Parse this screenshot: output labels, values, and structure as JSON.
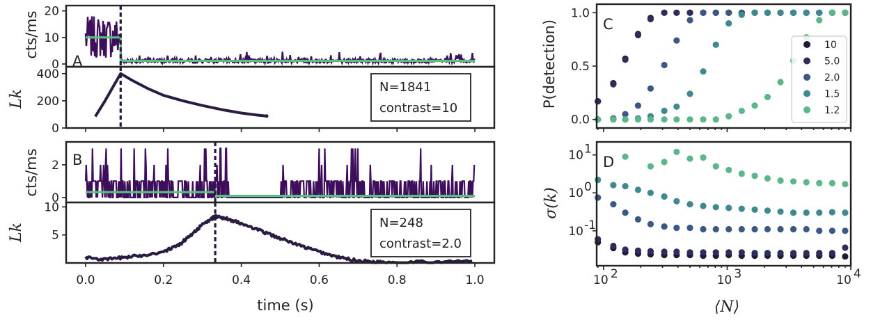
{
  "colors": {
    "trace": "#3e0d5c",
    "fit": "#55c379",
    "likelihood": "#2a1c40",
    "marker": "#241a3d",
    "contrast": {
      "10": "#24183a",
      "5.0": "#2c2d5a",
      "2.0": "#3c5783",
      "1.5": "#3f8891",
      "1.2": "#5cb68b"
    }
  },
  "chart_data": [
    {
      "id": "A-top",
      "type": "line",
      "panel_label": "A",
      "ylabel": "cts/ms",
      "ylim": [
        0,
        22
      ],
      "yticks": [
        0,
        10,
        20
      ],
      "xlim": [
        -0.05,
        1.05
      ],
      "change_point": 0.09,
      "fit_levels": [
        {
          "x0": 0.0,
          "x1": 0.09,
          "y": 10
        },
        {
          "x0": 0.09,
          "x1": 1.0,
          "y": 1.2
        }
      ],
      "trace_description_levels": {
        "before_mean": 10,
        "before_spread": 5,
        "after_mean": 1,
        "after_spikes_max": 4
      }
    },
    {
      "id": "A-bottom",
      "type": "line",
      "ylabel": "L_k",
      "ylim": [
        0,
        450
      ],
      "yticks": [
        0,
        200,
        400
      ],
      "xlim": [
        -0.05,
        1.05
      ],
      "xticks": [
        0.0,
        0.2,
        0.4,
        0.6,
        0.8,
        1.0
      ],
      "change_point": 0.09,
      "series": [
        {
          "x": [
            0.025,
            0.05,
            0.07,
            0.09,
            0.12,
            0.16,
            0.2,
            0.25,
            0.3,
            0.35,
            0.4,
            0.44,
            0.465
          ],
          "values": [
            85,
            200,
            300,
            400,
            350,
            290,
            240,
            200,
            165,
            135,
            110,
            95,
            88
          ]
        }
      ],
      "annotation": [
        "N=1841",
        "contrast=10"
      ]
    },
    {
      "id": "B-top",
      "type": "line",
      "panel_label": "B",
      "ylabel": "cts/ms",
      "ylim": [
        -0.3,
        3.4
      ],
      "yticks": [
        0,
        2
      ],
      "xlim": [
        -0.05,
        1.05
      ],
      "change_point": 0.333,
      "fit_levels": [
        {
          "x0": 0.0,
          "x1": 0.333,
          "y": 0.33
        },
        {
          "x0": 0.333,
          "x1": 1.0,
          "y": 0.1
        }
      ]
    },
    {
      "id": "B-bottom",
      "type": "line",
      "ylabel": "L_k",
      "ylim": [
        0,
        10.8
      ],
      "yticks": [
        5,
        10
      ],
      "xlim": [
        -0.05,
        1.05
      ],
      "xticks": [
        0.0,
        0.2,
        0.4,
        0.6,
        0.8,
        1.0
      ],
      "change_point": 0.333,
      "series": [
        {
          "x": [
            0.0,
            0.05,
            0.1,
            0.15,
            0.2,
            0.24,
            0.27,
            0.3,
            0.333,
            0.36,
            0.4,
            0.45,
            0.5,
            0.55,
            0.6,
            0.65,
            0.7,
            0.75,
            0.8,
            0.9,
            1.0
          ],
          "values": [
            1.0,
            0.6,
            1.0,
            1.4,
            2.0,
            3.2,
            5.0,
            6.8,
            8.3,
            8.0,
            7.0,
            5.7,
            4.4,
            3.1,
            2.0,
            1.0,
            0.4,
            0.2,
            0.1,
            0.2,
            0.3
          ]
        }
      ],
      "annotation": [
        "N=248",
        "contrast=2.0"
      ],
      "xlabel": "time (s)"
    },
    {
      "id": "C",
      "type": "scatter",
      "panel_label": "C",
      "ylabel": "P(detection)",
      "xscale": "log",
      "xlim": [
        88,
        10000
      ],
      "ylim": [
        -0.08,
        1.08
      ],
      "yticks": [
        0.0,
        0.5,
        1.0
      ],
      "x": [
        90,
        120,
        150,
        190,
        240,
        310,
        390,
        500,
        640,
        810,
        1030,
        1310,
        1670,
        2120,
        2700,
        3430,
        4370,
        5560,
        7070,
        9000
      ],
      "series": [
        {
          "name": "10",
          "values": [
            0.17,
            0.34,
            0.57,
            0.8,
            0.95,
            1.0,
            1.0,
            1.0,
            1.0,
            1.0,
            1.0,
            1.0,
            1.0,
            1.0,
            1.0,
            1.0,
            1.0,
            1.0,
            1.0,
            1.0
          ]
        },
        {
          "name": "5.0",
          "values": [
            0.17,
            0.33,
            0.56,
            0.79,
            0.94,
            1.0,
            1.0,
            1.0,
            1.0,
            1.0,
            1.0,
            1.0,
            1.0,
            1.0,
            1.0,
            1.0,
            1.0,
            1.0,
            1.0,
            1.0
          ]
        },
        {
          "name": "2.0",
          "values": [
            0.0,
            0.01,
            0.05,
            0.13,
            0.29,
            0.51,
            0.74,
            0.93,
            1.0,
            1.0,
            1.0,
            1.0,
            1.0,
            1.0,
            1.0,
            1.0,
            1.0,
            1.0,
            1.0,
            1.0
          ]
        },
        {
          "name": "1.5",
          "values": [
            0.0,
            0.0,
            0.0,
            0.01,
            0.03,
            0.08,
            0.12,
            0.24,
            0.45,
            0.7,
            0.9,
            0.98,
            1.0,
            1.0,
            1.0,
            1.0,
            1.0,
            1.0,
            1.0,
            1.0
          ]
        },
        {
          "name": "1.2",
          "values": [
            0.0,
            0.0,
            0.0,
            0.0,
            0.0,
            0.0,
            0.0,
            0.0,
            0.0,
            0.0,
            0.03,
            0.08,
            0.13,
            0.21,
            0.35,
            0.55,
            0.77,
            0.93,
            1.0,
            1.0
          ]
        }
      ],
      "legend": [
        "10",
        "5.0",
        "2.0",
        "1.5",
        "1.2"
      ],
      "legend_position": "right"
    },
    {
      "id": "D",
      "type": "scatter",
      "panel_label": "D",
      "ylabel": "σ(k)",
      "xlabel": "⟨N⟩",
      "xscale": "log",
      "yscale": "log",
      "xlim": [
        88,
        10000
      ],
      "ylim": [
        0.012,
        22
      ],
      "x": [
        90,
        120,
        150,
        190,
        240,
        310,
        390,
        500,
        640,
        810,
        1030,
        1310,
        1670,
        2120,
        2700,
        3430,
        4370,
        5560,
        7070,
        9000
      ],
      "series": [
        {
          "name": "10",
          "values": [
            0.05,
            0.035,
            0.027,
            0.025,
            0.024,
            0.023,
            0.023,
            0.023,
            0.022,
            0.022,
            0.023,
            0.022,
            0.022,
            0.022,
            0.022,
            0.022,
            0.022,
            0.022,
            0.022,
            0.021
          ]
        },
        {
          "name": "5.0",
          "values": [
            0.06,
            0.04,
            0.032,
            0.03,
            0.029,
            0.028,
            0.028,
            0.027,
            0.027,
            0.027,
            0.027,
            0.027,
            0.026,
            0.026,
            0.026,
            0.026,
            0.026,
            0.026,
            0.026,
            0.036
          ]
        },
        {
          "name": "2.0",
          "values": [
            0.75,
            0.5,
            0.3,
            0.2,
            0.15,
            0.13,
            0.12,
            0.12,
            0.11,
            0.11,
            0.11,
            0.11,
            0.11,
            0.11,
            0.11,
            0.11,
            0.11,
            0.1,
            0.1,
            0.1
          ]
        },
        {
          "name": "1.5",
          "values": [
            2.2,
            1.6,
            1.5,
            1.2,
            1.0,
            0.8,
            0.6,
            0.5,
            0.45,
            0.42,
            0.4,
            0.38,
            0.36,
            0.34,
            0.32,
            0.3,
            0.3,
            0.3,
            0.31,
            0.3
          ]
        },
        {
          "name": "1.2",
          "values": [
            null,
            null,
            9,
            null,
            5,
            6.5,
            12,
            8,
            8.5,
            5,
            4,
            3.2,
            2.8,
            2.4,
            2.1,
            2.0,
            1.9,
            1.8,
            1.8,
            1.7
          ]
        }
      ]
    }
  ]
}
